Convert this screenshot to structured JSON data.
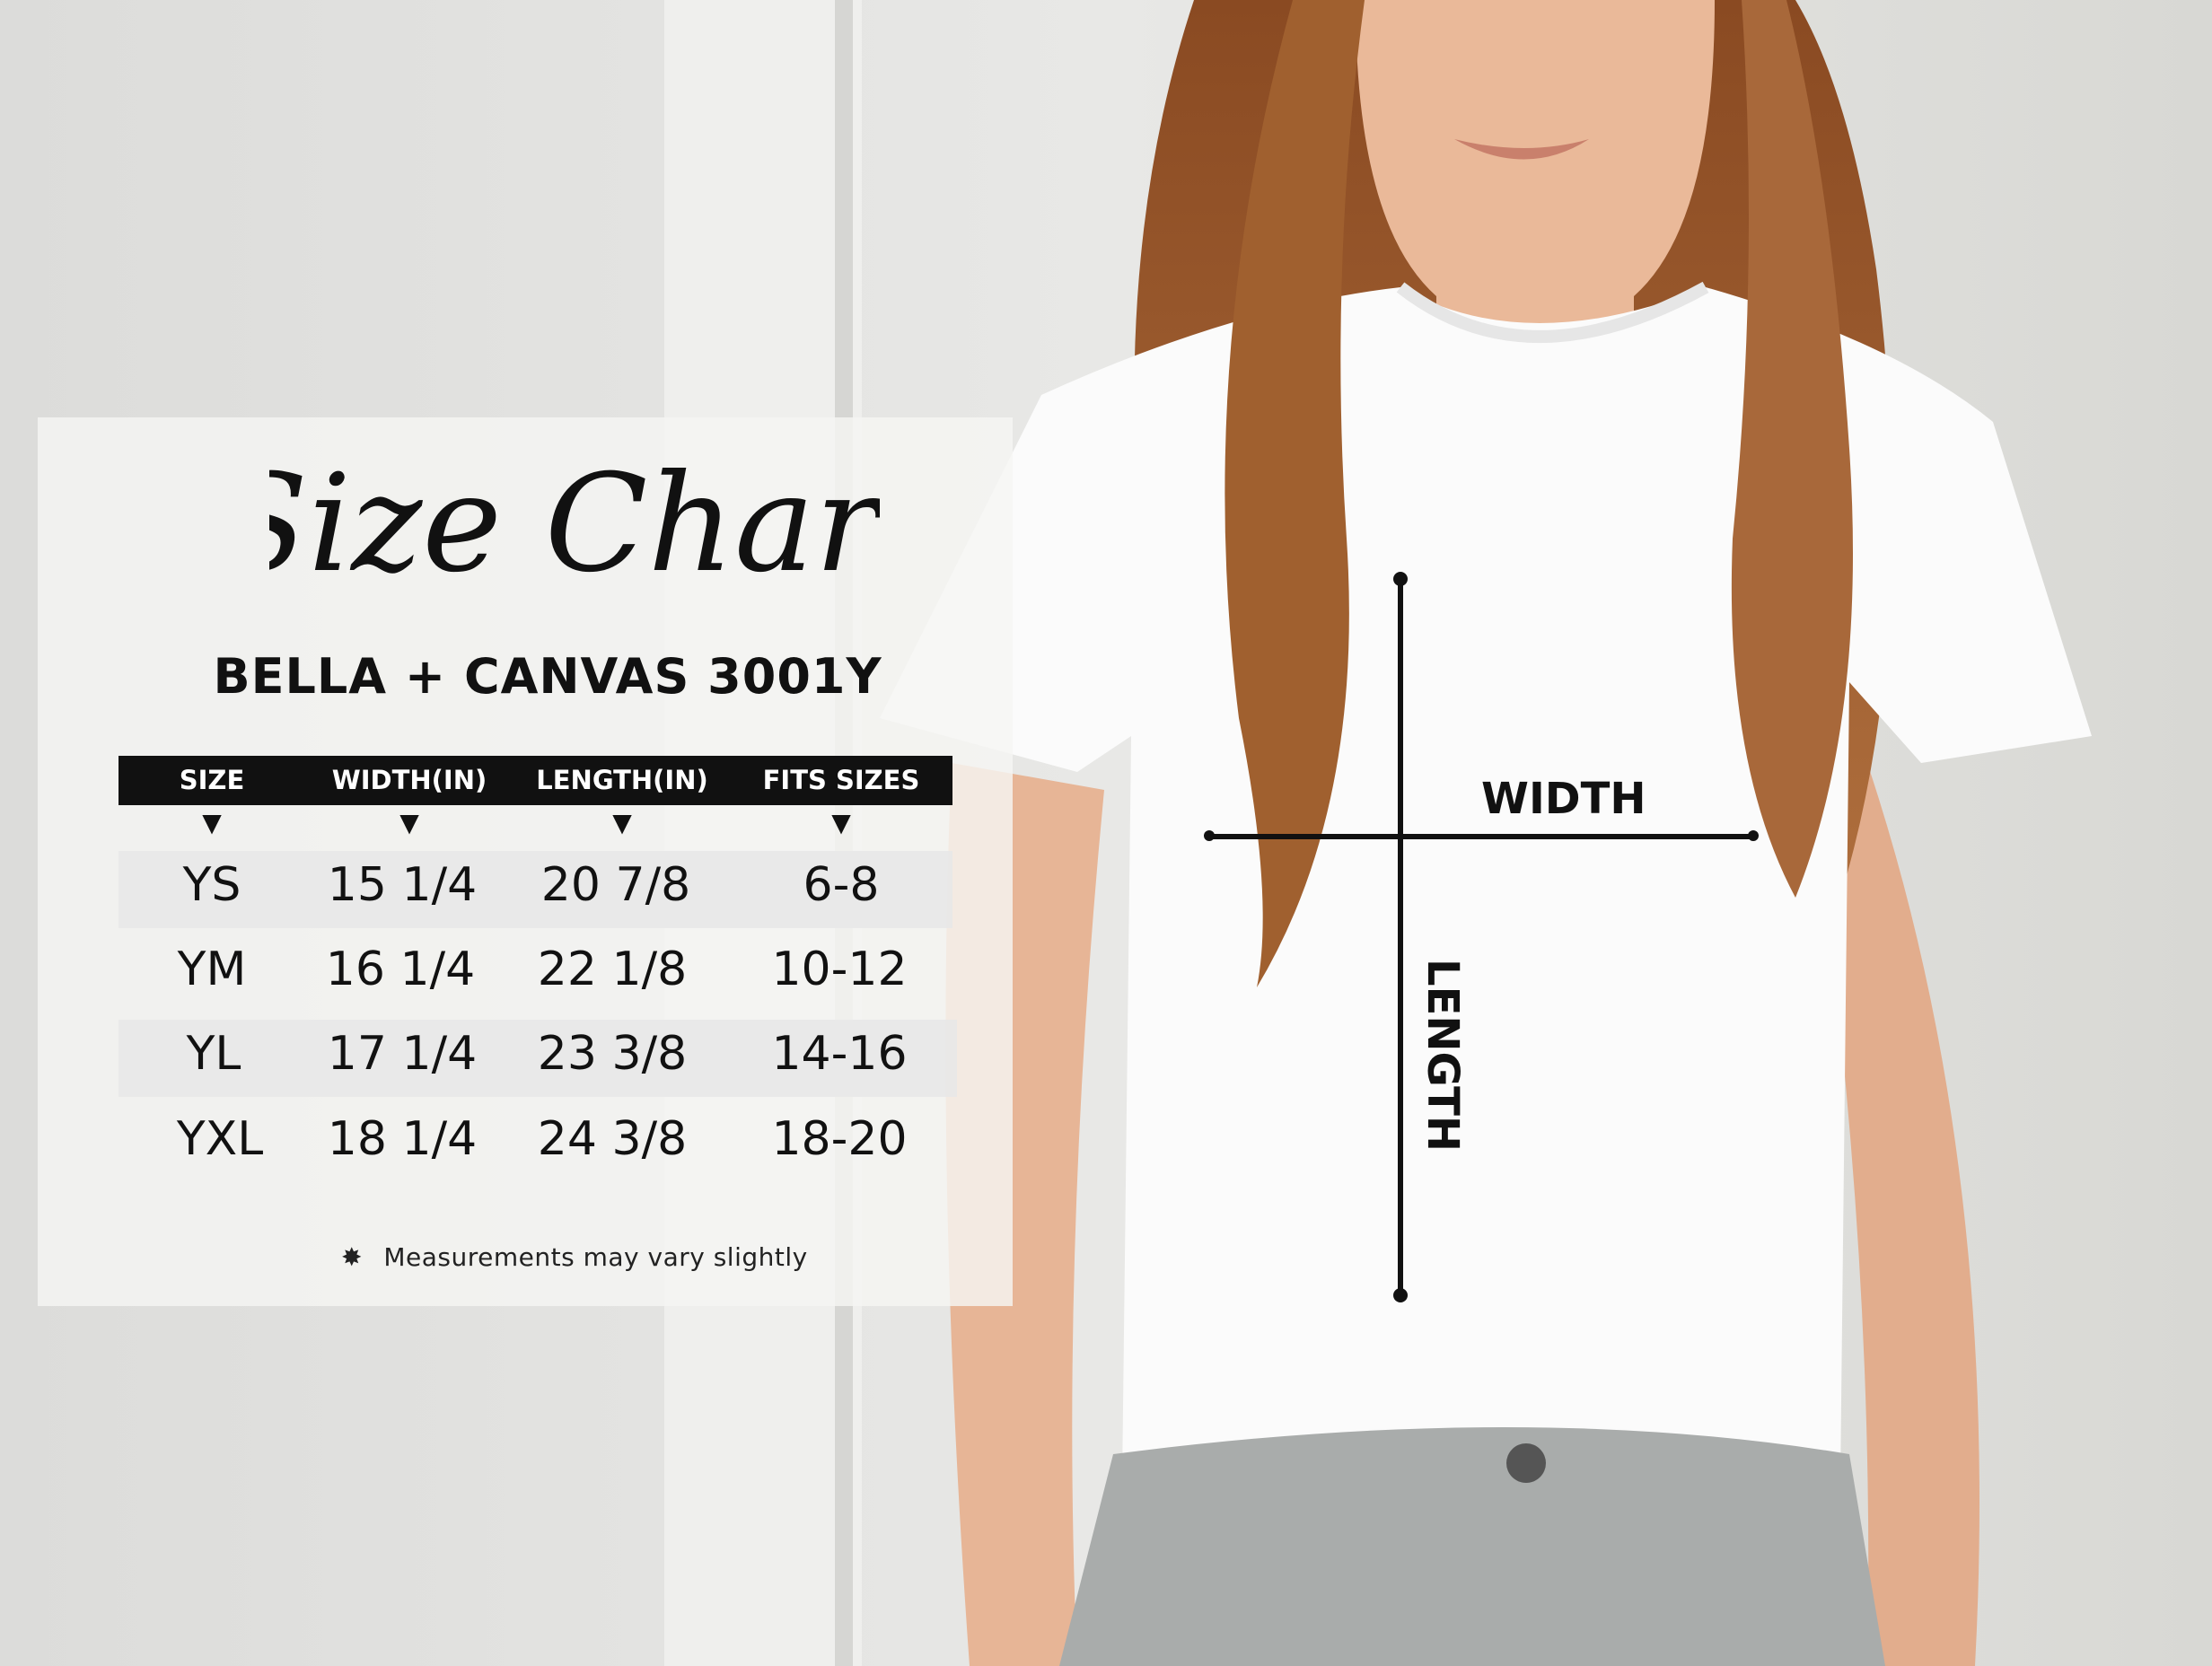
{
  "title_script": "Size Chart",
  "subtitle": "BELLA + CANVAS 3001Y",
  "table": {
    "headers": [
      "SIZE",
      "WIDTH(IN)",
      "LENGTH(IN)",
      "FITS SIZES"
    ],
    "rows": [
      [
        "YS",
        "15 1/4",
        "20 7/8",
        "6-8"
      ],
      [
        "YM",
        "16 1/4",
        "22 1/8",
        "10-12"
      ],
      [
        "YL",
        "17 1/4",
        "23 3/8",
        "14-16"
      ],
      [
        "YXL",
        "18 1/4",
        "24 3/8",
        "18-20"
      ]
    ]
  },
  "note": {
    "icon": "asterisk-icon",
    "text": "Measurements may vary slightly"
  },
  "shirt_labels": {
    "width": "WIDTH",
    "length": "LENGTH"
  },
  "colors": {
    "header_bg": "#111111",
    "text": "#111111",
    "panel": "#f5f5f3"
  }
}
